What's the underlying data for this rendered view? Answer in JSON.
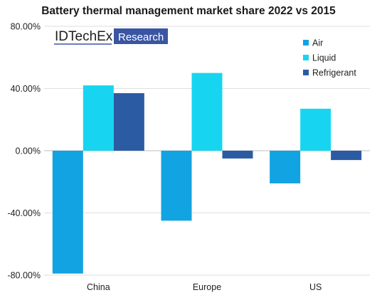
{
  "chart_data": {
    "type": "bar",
    "title": "Battery thermal management market share 2022 vs 2015",
    "xlabel": "",
    "ylabel": "",
    "categories": [
      "China",
      "Europe",
      "US"
    ],
    "ylim": [
      -80,
      80
    ],
    "yticks": [
      80,
      40,
      0,
      -40,
      -80
    ],
    "ytick_labels": [
      "80.00%",
      "40.00%",
      "0.00%",
      "-40.00%",
      "-80.00%"
    ],
    "grid": true,
    "legend_position": "top-right",
    "series": [
      {
        "name": "Air",
        "color": "#12A3E3",
        "values": [
          -79,
          -45,
          -21
        ]
      },
      {
        "name": "Liquid",
        "color": "#17D5F0",
        "values": [
          42,
          50,
          27
        ]
      },
      {
        "name": "Refrigerant",
        "color": "#2B5BA3",
        "values": [
          37,
          -5,
          -6
        ]
      }
    ]
  },
  "brand": {
    "name": "IDTechEx",
    "tag": "Research",
    "underline_color": "#3A55A4",
    "tag_bg": "#3A55A4"
  }
}
